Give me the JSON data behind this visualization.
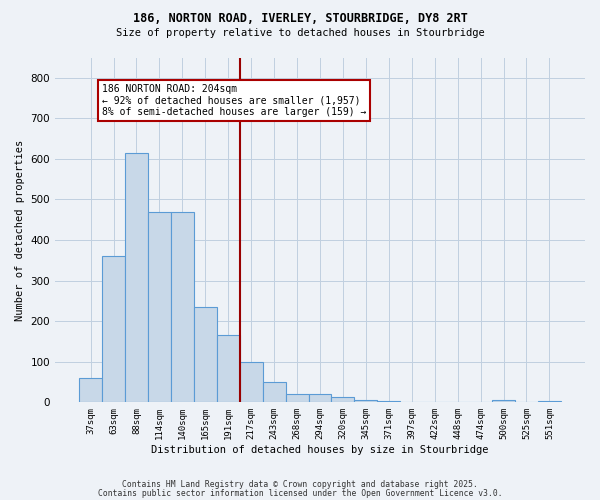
{
  "title1": "186, NORTON ROAD, IVERLEY, STOURBRIDGE, DY8 2RT",
  "title2": "Size of property relative to detached houses in Stourbridge",
  "xlabel": "Distribution of detached houses by size in Stourbridge",
  "ylabel": "Number of detached properties",
  "categories": [
    "37sqm",
    "63sqm",
    "88sqm",
    "114sqm",
    "140sqm",
    "165sqm",
    "191sqm",
    "217sqm",
    "243sqm",
    "268sqm",
    "294sqm",
    "320sqm",
    "345sqm",
    "371sqm",
    "397sqm",
    "422sqm",
    "448sqm",
    "474sqm",
    "500sqm",
    "525sqm",
    "551sqm"
  ],
  "values": [
    60,
    360,
    615,
    470,
    470,
    235,
    165,
    100,
    50,
    20,
    20,
    12,
    5,
    3,
    2,
    1,
    1,
    1,
    5,
    2,
    3
  ],
  "bar_color": "#c8d8e8",
  "bar_edge_color": "#5b9bd5",
  "grid_color": "#c0cfe0",
  "vline_x_index": 7,
  "vline_color": "#990000",
  "annotation_text": "186 NORTON ROAD: 204sqm\n← 92% of detached houses are smaller (1,957)\n8% of semi-detached houses are larger (159) →",
  "annotation_box_color": "#ffffff",
  "annotation_box_edge_color": "#aa0000",
  "footer1": "Contains HM Land Registry data © Crown copyright and database right 2025.",
  "footer2": "Contains public sector information licensed under the Open Government Licence v3.0.",
  "ylim": [
    0,
    850
  ],
  "bg_color": "#eef2f7"
}
